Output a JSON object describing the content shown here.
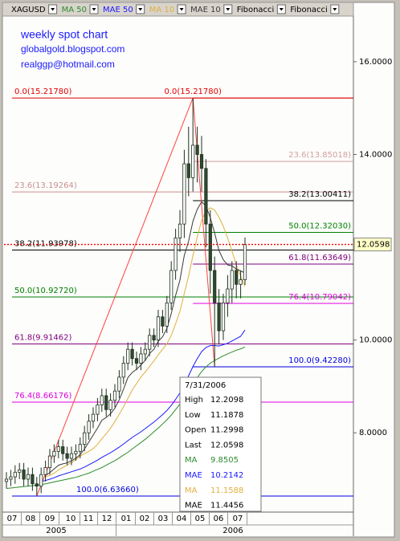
{
  "chart_data": {
    "type": "candlestick",
    "symbol": "XAGUSD",
    "annotations": [
      "weekly spot chart",
      "globalgold.blogspot.com",
      "realggp@hotmail.com"
    ],
    "categories": [
      null,
      null,
      null,
      null,
      null,
      null,
      null,
      null,
      null,
      null,
      null,
      null,
      null,
      null,
      null,
      null,
      null,
      null,
      null,
      null,
      null,
      null,
      null,
      null,
      null,
      null,
      null,
      null,
      null,
      null,
      null,
      null,
      null,
      null,
      null,
      null,
      null,
      null,
      null,
      null,
      null,
      null,
      null,
      null,
      null,
      null,
      null,
      null,
      null,
      null,
      null,
      null,
      null,
      null,
      null,
      "7/31/2006"
    ],
    "candles": {
      "open": [
        6.95,
        7.0,
        7.05,
        7.15,
        7.2,
        7.0,
        7.1,
        6.9,
        6.85,
        7.1,
        7.25,
        7.5,
        7.6,
        7.7,
        7.55,
        7.45,
        7.55,
        7.6,
        7.75,
        8.0,
        8.25,
        8.4,
        8.6,
        8.8,
        8.5,
        8.7,
        8.9,
        9.2,
        9.5,
        9.8,
        9.6,
        9.5,
        9.7,
        9.8,
        10.1,
        10.0,
        10.5,
        10.3,
        10.8,
        11.5,
        12.2,
        12.5,
        13.8,
        13.5,
        14.2,
        14.0,
        13.7,
        12.5,
        11.5,
        10.8,
        10.2,
        10.8,
        11.1,
        11.5,
        11.2,
        11.2998
      ],
      "high": [
        7.15,
        7.2,
        7.3,
        7.35,
        7.35,
        7.25,
        7.25,
        7.05,
        7.25,
        7.4,
        7.65,
        7.75,
        7.85,
        7.85,
        7.7,
        7.7,
        7.75,
        7.9,
        8.15,
        8.4,
        8.55,
        8.75,
        8.95,
        8.95,
        8.85,
        9.05,
        9.35,
        9.65,
        9.95,
        9.95,
        9.75,
        9.85,
        9.95,
        10.25,
        10.25,
        10.65,
        10.65,
        10.95,
        11.7,
        12.4,
        12.8,
        14.1,
        14.6,
        15.2178,
        14.6,
        14.4,
        13.9,
        12.8,
        11.8,
        11.1,
        11.0,
        11.4,
        11.7,
        11.7,
        11.5,
        12.2098
      ],
      "low": [
        6.8,
        6.85,
        6.9,
        7.0,
        6.85,
        6.85,
        6.75,
        6.6366,
        6.7,
        6.95,
        7.1,
        7.35,
        7.45,
        7.4,
        7.3,
        7.3,
        7.4,
        7.45,
        7.6,
        7.85,
        8.1,
        8.25,
        8.45,
        8.35,
        8.35,
        8.55,
        8.75,
        9.05,
        9.35,
        9.45,
        9.35,
        9.35,
        9.55,
        9.65,
        9.85,
        9.85,
        10.15,
        10.15,
        10.65,
        11.3,
        11.9,
        12.2,
        13.1,
        13.2,
        13.4,
        13.2,
        12.0,
        11.0,
        9.4228,
        9.9,
        10.0,
        10.5,
        10.8,
        10.9,
        10.9,
        11.1878
      ],
      "close": [
        7.0,
        7.05,
        7.15,
        7.2,
        7.0,
        7.1,
        6.9,
        6.85,
        7.1,
        7.25,
        7.5,
        7.6,
        7.7,
        7.55,
        7.45,
        7.55,
        7.6,
        7.75,
        8.0,
        8.25,
        8.4,
        8.6,
        8.8,
        8.5,
        8.7,
        8.9,
        9.2,
        9.5,
        9.8,
        9.6,
        9.5,
        9.7,
        9.8,
        10.1,
        10.0,
        10.5,
        10.3,
        10.8,
        11.5,
        12.2,
        12.5,
        13.8,
        13.5,
        14.2,
        14.0,
        13.7,
        12.5,
        11.5,
        10.8,
        10.2,
        10.8,
        11.1,
        11.5,
        11.2,
        11.3,
        12.0598
      ]
    },
    "up_color": "#ffffff",
    "down_color": "#2f4a2f",
    "series": [
      {
        "name": "MA 50",
        "color": "#2e8b2e",
        "values": [
          6.8,
          6.81,
          6.82,
          6.83,
          6.84,
          6.85,
          6.86,
          6.87,
          6.88,
          6.9,
          6.92,
          6.94,
          6.96,
          6.98,
          7.0,
          7.02,
          7.04,
          7.07,
          7.1,
          7.13,
          7.17,
          7.21,
          7.25,
          7.3,
          7.35,
          7.4,
          7.46,
          7.52,
          7.58,
          7.65,
          7.72,
          7.79,
          7.86,
          7.94,
          8.02,
          8.1,
          8.19,
          8.28,
          8.38,
          8.5,
          8.62,
          8.76,
          8.9,
          9.05,
          9.19,
          9.32,
          9.42,
          9.5,
          9.56,
          9.61,
          9.66,
          9.7,
          9.74,
          9.78,
          9.81,
          9.8505
        ]
      },
      {
        "name": "MAE 50",
        "color": "#1a1aff",
        "values": [
          null,
          null,
          null,
          null,
          null,
          null,
          null,
          null,
          6.95,
          6.97,
          7.0,
          7.03,
          7.07,
          7.1,
          7.13,
          7.16,
          7.19,
          7.22,
          7.26,
          7.31,
          7.36,
          7.41,
          7.47,
          7.52,
          7.57,
          7.63,
          7.69,
          7.76,
          7.83,
          7.9,
          7.96,
          8.02,
          8.09,
          8.16,
          8.23,
          8.31,
          8.39,
          8.48,
          8.59,
          8.72,
          8.86,
          9.05,
          9.23,
          9.43,
          9.6,
          9.75,
          9.84,
          9.88,
          9.88,
          9.87,
          9.9,
          9.93,
          9.98,
          10.03,
          10.08,
          10.2142
        ]
      },
      {
        "name": "MA 10",
        "color": "#e0b040",
        "values": [
          null,
          null,
          null,
          null,
          null,
          null,
          null,
          null,
          null,
          7.05,
          7.08,
          7.13,
          7.2,
          7.25,
          7.3,
          7.36,
          7.42,
          7.5,
          7.55,
          7.6,
          7.66,
          7.75,
          7.87,
          7.98,
          8.1,
          8.24,
          8.4,
          8.56,
          8.74,
          8.92,
          9.06,
          9.2,
          9.31,
          9.43,
          9.55,
          9.68,
          9.8,
          9.92,
          10.1,
          10.35,
          10.62,
          11.0,
          11.38,
          11.82,
          12.22,
          12.58,
          12.78,
          12.85,
          12.8,
          12.65,
          12.45,
          12.2,
          11.92,
          11.62,
          11.38,
          11.1588
        ]
      },
      {
        "name": "MAE 10",
        "color": "#3a3a3a",
        "values": [
          null,
          null,
          null,
          null,
          null,
          null,
          null,
          null,
          null,
          7.08,
          7.14,
          7.22,
          7.3,
          7.33,
          7.35,
          7.4,
          7.45,
          7.53,
          7.65,
          7.8,
          7.95,
          8.1,
          8.27,
          8.33,
          8.41,
          8.53,
          8.71,
          8.94,
          9.19,
          9.3,
          9.37,
          9.46,
          9.56,
          9.71,
          9.8,
          9.97,
          10.07,
          10.25,
          10.57,
          10.96,
          11.29,
          11.82,
          12.13,
          12.56,
          12.82,
          12.98,
          12.89,
          12.64,
          12.31,
          11.93,
          11.73,
          11.62,
          11.6,
          11.53,
          11.49,
          11.4456
        ]
      }
    ],
    "fibonacci": [
      {
        "name": "Fibonacci",
        "levels": [
          {
            "value": 15.2178,
            "label": "0.0(15.21780)",
            "color": "#e00000"
          },
          {
            "value": 13.19264,
            "label": "23.6(13.19264)",
            "color": "#c89090"
          },
          {
            "value": 11.93978,
            "label": "38.2(11.93978)",
            "color": "#000000"
          },
          {
            "value": 10.9272,
            "label": "50.0(10.92720)",
            "color": "#008000"
          },
          {
            "value": 9.91462,
            "label": "61.8(9.91462)",
            "color": "#800080"
          },
          {
            "value": 8.66176,
            "label": "76.4(8.66176)",
            "color": "#e000e0"
          },
          {
            "value": 6.6366,
            "label": "100.0(6.63660)",
            "color": "#0000e0"
          }
        ]
      },
      {
        "name": "Fibonacci",
        "levels": [
          {
            "value": 15.2178,
            "label": "0.0(15.21780)",
            "color": "#e00000"
          },
          {
            "value": 13.85018,
            "label": "23.6(13.85018)",
            "color": "#d0a0a0"
          },
          {
            "value": 13.00411,
            "label": "38.2(13.00411)",
            "color": "#000000"
          },
          {
            "value": 12.3203,
            "label": "50.0(12.32030)",
            "color": "#008000"
          },
          {
            "value": 11.63649,
            "label": "61.8(11.63649)",
            "color": "#800080"
          },
          {
            "value": 10.79042,
            "label": "76.4(10.79042)",
            "color": "#e000e0"
          },
          {
            "value": 9.4228,
            "label": "100.0(9.42280)",
            "color": "#0000e0"
          }
        ]
      }
    ],
    "last_price_color": "#ff0000",
    "ylim": [
      6.29,
      16.95
    ],
    "yticks": [
      {
        "value": 16,
        "label": "16.0000"
      },
      {
        "value": 14,
        "label": "14.0000"
      },
      {
        "value": 10,
        "label": "10.0000"
      },
      {
        "value": 8,
        "label": "8.0000"
      }
    ],
    "x_months": [
      "07",
      "08",
      "09",
      "10",
      "11",
      "12",
      "01",
      "02",
      "03",
      "04",
      "05",
      "06",
      "07"
    ],
    "x_years": [
      "2005",
      "2006"
    ],
    "info_box": {
      "labels": [
        "High",
        "Low",
        "Open",
        "Last",
        "MA",
        "MAE",
        "MA",
        "MAE"
      ]
    }
  }
}
